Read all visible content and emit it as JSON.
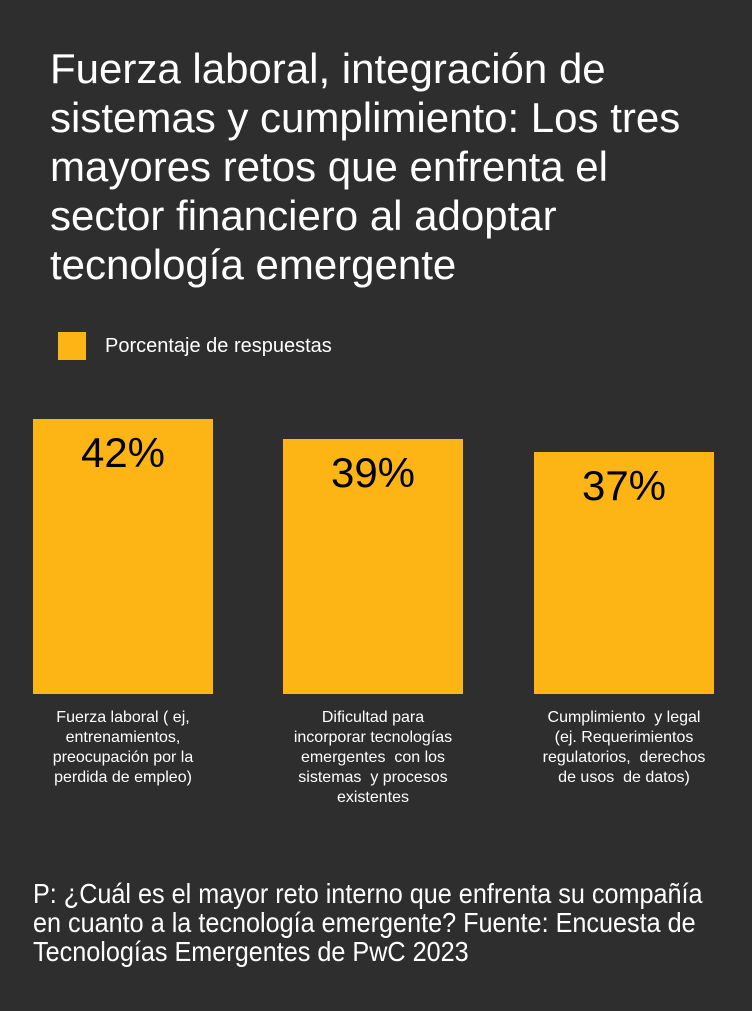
{
  "colors": {
    "background": "#2E2E2E",
    "bar": "#FDB515",
    "text_light": "#FFFFFF",
    "text_dark": "#000000"
  },
  "title_lines": [
    "Fuerza laboral, integración de",
    "sistemas y cumplimiento: Los tres",
    "mayores retos que enfrenta el",
    "sector financiero al adoptar",
    "tecnología emergente"
  ],
  "legend": {
    "label": "Porcentaje de respuestas"
  },
  "category_label_lines": [
    [
      "Fuerza laboral ( ej,",
      "entrenamientos,",
      "preocupación por la",
      "perdida de empleo)"
    ],
    [
      "Dificultad para",
      "incorporar tecnologías",
      "emergentes  con los",
      "sistemas  y procesos",
      "existentes"
    ],
    [
      "Cumplimiento  y legal",
      "(ej. Requerimientos",
      "regulatorios,  derechos",
      "de usos  de datos)"
    ]
  ],
  "footnote": {
    "text": "P: ¿Cuál es el mayor reto interno que enfrenta su compañía en cuanto a la tecnología emergente? Fuente: Encuesta de Tecnologías Emergentes de PwC 2023",
    "lines": [
      "P: ¿Cuál es el mayor reto interno que enfrenta su compañía",
      "en cuanto a la tecnología emergente? Fuente: Encuesta de",
      "Tecnologías Emergentes de PwC 2023"
    ]
  },
  "chart_data": {
    "type": "bar",
    "title": "Fuerza laboral, integración de sistemas y cumplimiento: Los tres mayores retos que enfrenta el sector financiero al adoptar tecnología emergente",
    "legend": [
      "Porcentaje de respuestas"
    ],
    "legend_position": "top-left",
    "categories": [
      "Fuerza laboral ( ej, entrenamientos, preocupación por la perdida de empleo)",
      "Dificultad para incorporar tecnologías emergentes con los sistemas y procesos existentes",
      "Cumplimiento y legal (ej. Requerimientos regulatorios, derechos de usos de datos)"
    ],
    "values": [
      42,
      39,
      37
    ],
    "value_labels": [
      "42%",
      "39%",
      "37%"
    ],
    "value_label_position": "inside-top",
    "orientation": "vertical",
    "xlabel": "",
    "ylabel": "",
    "ylim": [
      0,
      45
    ],
    "grid": false,
    "axes_visible": false,
    "bar_color": "#FDB515",
    "background_color": "#2E2E2E"
  }
}
